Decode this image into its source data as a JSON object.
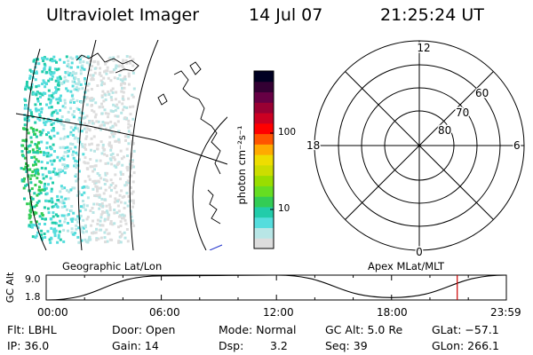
{
  "header": {
    "instrument": "Ultraviolet Imager",
    "date": "14 Jul 07",
    "time": "21:25:24 UT"
  },
  "colorbar": {
    "label": "photon cm⁻²s⁻¹",
    "ticks": [
      "100",
      "10"
    ],
    "colors": [
      "#dddddd",
      "#b8e6e6",
      "#55dddd",
      "#22ccaa",
      "#33cc55",
      "#66dd22",
      "#99dd00",
      "#ccdd00",
      "#eedd00",
      "#ffaa00",
      "#ff5500",
      "#ff0000",
      "#cc0022",
      "#990033",
      "#660044",
      "#330033",
      "#000022"
    ]
  },
  "polar": {
    "mlt_labels": {
      "top": "12",
      "left": "18",
      "right": "6",
      "bottom": "0"
    },
    "lat_labels": [
      "60",
      "70",
      "80"
    ]
  },
  "timeline": {
    "left_title": "Geographic Lat/Lon",
    "right_title": "Apex MLat/MLT",
    "y_label": "GC Alt",
    "y_ticks": [
      "9.0",
      "1.8"
    ],
    "x_ticks": [
      "00:00",
      "06:00",
      "12:00",
      "18:00",
      "23:59"
    ],
    "marker_color": "#cc0000"
  },
  "footer": {
    "flt": "Flt: LBHL",
    "ip": "IP: 36.0",
    "door": "Door: Open",
    "gain": "Gain: 14",
    "mode": "Mode: Normal",
    "dsp_label": "Dsp:",
    "dsp_value": "3.2",
    "gc_alt": "GC Alt: 5.0 Re",
    "seq": "Seq: 39",
    "glat": "GLat: −57.1",
    "glon": "GLon: 266.1"
  },
  "chart_data": {
    "type": "line",
    "x": [
      "00:00",
      "06:00",
      "12:00",
      "18:00",
      "23:59"
    ],
    "series": [
      {
        "values": [
          1.8,
          8.8,
          9.0,
          2.5,
          9.0
        ]
      }
    ],
    "ylim": [
      1.8,
      9.0
    ],
    "ylabel": "GC Alt",
    "marker_time": "21:25:24"
  }
}
